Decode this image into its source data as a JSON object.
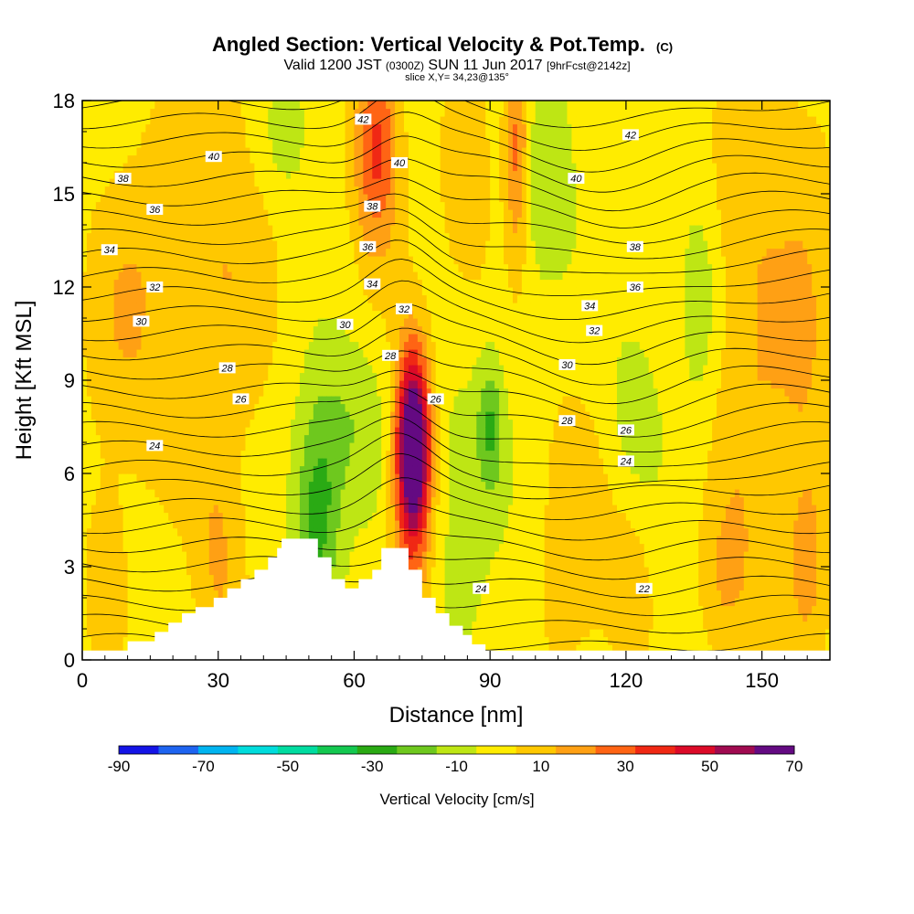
{
  "chart_data": {
    "type": "heatmap",
    "title": "Angled Section: Vertical Velocity & Pot.Temp.",
    "title_mark": "(C)",
    "subtitle_parts": [
      "Valid 1200 JST",
      "(0300Z)",
      "SUN 11 Jun 2017",
      "[9hrFcst@2142z]"
    ],
    "slice_text": "slice X,Y= 34,23@135°",
    "xlabel": "Distance [nm]",
    "ylabel": "Height [Kft MSL]",
    "xlim": [
      0,
      165
    ],
    "ylim": [
      0,
      18
    ],
    "xticks": [
      0,
      30,
      60,
      90,
      120,
      150
    ],
    "yticks": [
      0,
      3,
      6,
      9,
      12,
      15,
      18
    ],
    "colorbar": {
      "label": "Vertical Velocity [cm/s]",
      "tick_values": [
        -90,
        -70,
        -50,
        -30,
        -10,
        10,
        30,
        50,
        70
      ],
      "levels": [
        -90,
        -80,
        -70,
        -60,
        -50,
        -40,
        -30,
        -20,
        -10,
        0,
        10,
        20,
        30,
        40,
        50,
        60,
        70
      ],
      "colors": [
        "#1414e6",
        "#1e64f0",
        "#00b4f0",
        "#00dcdc",
        "#00dca0",
        "#14c850",
        "#2aaa14",
        "#6ec81e",
        "#bee614",
        "#ffec00",
        "#ffc800",
        "#ffa014",
        "#ff6414",
        "#f02814",
        "#dc0a28",
        "#a00a50",
        "#640a82"
      ]
    },
    "terrain": [
      [
        0,
        0.3
      ],
      [
        10,
        0.3
      ],
      [
        10,
        0.6
      ],
      [
        16,
        0.6
      ],
      [
        16,
        0.9
      ],
      [
        19,
        0.9
      ],
      [
        19,
        1.2
      ],
      [
        22,
        1.2
      ],
      [
        22,
        1.5
      ],
      [
        25,
        1.5
      ],
      [
        25,
        1.7
      ],
      [
        29,
        1.7
      ],
      [
        29,
        2.0
      ],
      [
        32,
        2.0
      ],
      [
        32,
        2.3
      ],
      [
        35,
        2.3
      ],
      [
        35,
        2.6
      ],
      [
        38,
        2.6
      ],
      [
        38,
        2.9
      ],
      [
        41,
        2.9
      ],
      [
        41,
        3.3
      ],
      [
        43,
        3.3
      ],
      [
        43,
        3.6
      ],
      [
        44,
        3.6
      ],
      [
        44,
        3.9
      ],
      [
        52,
        3.9
      ],
      [
        52,
        3.3
      ],
      [
        55,
        3.3
      ],
      [
        55,
        2.6
      ],
      [
        58,
        2.6
      ],
      [
        58,
        2.3
      ],
      [
        61,
        2.3
      ],
      [
        61,
        2.6
      ],
      [
        64,
        2.6
      ],
      [
        64,
        2.9
      ],
      [
        66,
        2.9
      ],
      [
        66,
        3.6
      ],
      [
        72,
        3.6
      ],
      [
        72,
        2.9
      ],
      [
        75,
        2.9
      ],
      [
        75,
        2.0
      ],
      [
        78,
        2.0
      ],
      [
        78,
        1.5
      ],
      [
        81,
        1.5
      ],
      [
        81,
        1.1
      ],
      [
        84,
        1.1
      ],
      [
        84,
        0.8
      ],
      [
        86,
        0.8
      ],
      [
        86,
        0.5
      ],
      [
        89,
        0.5
      ],
      [
        89,
        0.3
      ],
      [
        165,
        0.3
      ]
    ],
    "fill_field": {
      "description_base": "yellow",
      "features": [
        {
          "x": 73,
          "y": 7.0,
          "sx": 2.3,
          "sy": 1.8,
          "value": 65
        },
        {
          "x": 73,
          "y": 6.0,
          "sx": 3.2,
          "sy": 3.0,
          "value": 45
        },
        {
          "x": 65,
          "y": 16.5,
          "sx": 3.5,
          "sy": 2.5,
          "value": 40
        },
        {
          "x": 96,
          "y": 16.5,
          "sx": 2.0,
          "sy": 2.5,
          "value": 35
        },
        {
          "x": 52,
          "y": 4.5,
          "sx": 3.5,
          "sy": 2.2,
          "value": -28
        },
        {
          "x": 58,
          "y": 7.5,
          "sx": 7.0,
          "sy": 2.0,
          "value": -14
        },
        {
          "x": 102,
          "y": 15.5,
          "sx": 5.0,
          "sy": 2.5,
          "value": -14
        },
        {
          "x": 90,
          "y": 7.5,
          "sx": 2.0,
          "sy": 1.5,
          "value": -22
        },
        {
          "x": 83,
          "y": 5.5,
          "sx": 7.0,
          "sy": 3.0,
          "value": -10
        },
        {
          "x": 122,
          "y": 8.0,
          "sx": 4.0,
          "sy": 2.0,
          "value": -10
        },
        {
          "x": 136,
          "y": 11.5,
          "sx": 2.5,
          "sy": 2.0,
          "value": -14
        },
        {
          "x": 45,
          "y": 17.0,
          "sx": 4.0,
          "sy": 1.5,
          "value": -12
        },
        {
          "x": 30,
          "y": 13.0,
          "sx": 9.0,
          "sy": 5.0,
          "value": 15
        },
        {
          "x": 10,
          "y": 11.0,
          "sx": 7.0,
          "sy": 4.0,
          "value": 14
        },
        {
          "x": 148,
          "y": 11.0,
          "sx": 6.0,
          "sy": 7.0,
          "value": 15
        },
        {
          "x": 160,
          "y": 10.0,
          "sx": 5.0,
          "sy": 6.0,
          "value": 14
        },
        {
          "x": 30,
          "y": 3.0,
          "sx": 4.0,
          "sy": 2.5,
          "value": 15
        },
        {
          "x": 108,
          "y": 4.0,
          "sx": 5.0,
          "sy": 3.5,
          "value": 13
        },
        {
          "x": 142,
          "y": 2.5,
          "sx": 4.0,
          "sy": 2.0,
          "value": 14
        },
        {
          "x": 120,
          "y": 2.5,
          "sx": 4.0,
          "sy": 2.0,
          "value": 12
        },
        {
          "x": 85,
          "y": 15.0,
          "sx": 4.0,
          "sy": 3.0,
          "value": 13
        },
        {
          "x": 5,
          "y": 2.5,
          "sx": 3.0,
          "sy": 2.0,
          "value": 13
        },
        {
          "x": 160,
          "y": 3.0,
          "sx": 3.0,
          "sy": 2.0,
          "value": 12
        }
      ]
    },
    "contour_labels": [
      {
        "text": "42",
        "x": 62,
        "y": 17.4
      },
      {
        "text": "42",
        "x": 121,
        "y": 16.9
      },
      {
        "text": "40",
        "x": 29,
        "y": 16.2
      },
      {
        "text": "40",
        "x": 70,
        "y": 16.0
      },
      {
        "text": "40",
        "x": 109,
        "y": 15.5
      },
      {
        "text": "38",
        "x": 9,
        "y": 15.5
      },
      {
        "text": "38",
        "x": 64,
        "y": 14.6
      },
      {
        "text": "38",
        "x": 122,
        "y": 13.3
      },
      {
        "text": "36",
        "x": 16,
        "y": 14.5
      },
      {
        "text": "36",
        "x": 63,
        "y": 13.3
      },
      {
        "text": "36",
        "x": 122,
        "y": 12.0
      },
      {
        "text": "34",
        "x": 6,
        "y": 13.2
      },
      {
        "text": "34",
        "x": 64,
        "y": 12.1
      },
      {
        "text": "34",
        "x": 112,
        "y": 11.4
      },
      {
        "text": "32",
        "x": 16,
        "y": 12.0
      },
      {
        "text": "32",
        "x": 71,
        "y": 11.3
      },
      {
        "text": "32",
        "x": 113,
        "y": 10.6
      },
      {
        "text": "30",
        "x": 13,
        "y": 10.9
      },
      {
        "text": "30",
        "x": 58,
        "y": 10.8
      },
      {
        "text": "30",
        "x": 107,
        "y": 9.5
      },
      {
        "text": "28",
        "x": 32,
        "y": 9.4
      },
      {
        "text": "28",
        "x": 68,
        "y": 9.8
      },
      {
        "text": "28",
        "x": 107,
        "y": 7.7
      },
      {
        "text": "26",
        "x": 35,
        "y": 8.4
      },
      {
        "text": "26",
        "x": 78,
        "y": 8.4
      },
      {
        "text": "26",
        "x": 120,
        "y": 7.4
      },
      {
        "text": "24",
        "x": 16,
        "y": 6.9
      },
      {
        "text": "24",
        "x": 120,
        "y": 6.4
      },
      {
        "text": "24",
        "x": 88,
        "y": 2.3
      },
      {
        "text": "22",
        "x": 124,
        "y": 2.3
      }
    ]
  }
}
